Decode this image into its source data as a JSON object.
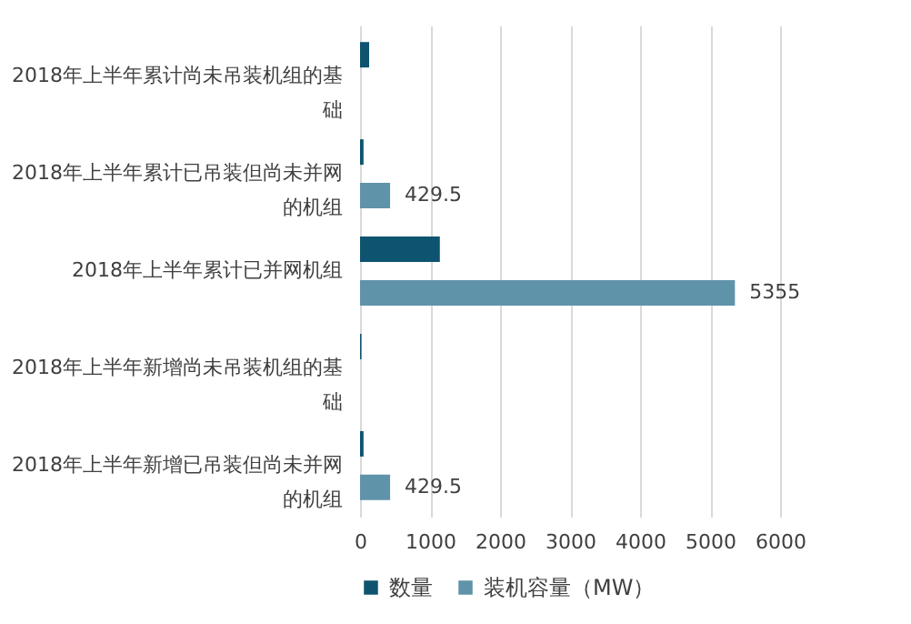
{
  "chart_data": {
    "type": "bar",
    "orientation": "horizontal",
    "categories": [
      "2018年上半年累计尚未吊装机组的基础",
      "2018年上半年累计已吊装但尚未并网的机组",
      "2018年上半年累计已并网机组",
      "2018年上半年新增尚未吊装机组的基础",
      "2018年上半年新增已吊装但尚未并网的机组"
    ],
    "series": [
      {
        "name": "数量",
        "color": "#0e5470",
        "values": [
          130,
          50,
          1140,
          20,
          50
        ]
      },
      {
        "name": "装机容量（MW）",
        "color": "#5f93aa",
        "values": [
          null,
          429.5,
          5355,
          null,
          429.5
        ],
        "value_labels": [
          null,
          "429.5",
          "5355",
          null,
          "429.5"
        ]
      }
    ],
    "xlim": [
      0,
      6000
    ],
    "xticks": [
      0,
      1000,
      2000,
      3000,
      4000,
      5000,
      6000
    ],
    "grid": "x",
    "legend": "bottom"
  }
}
